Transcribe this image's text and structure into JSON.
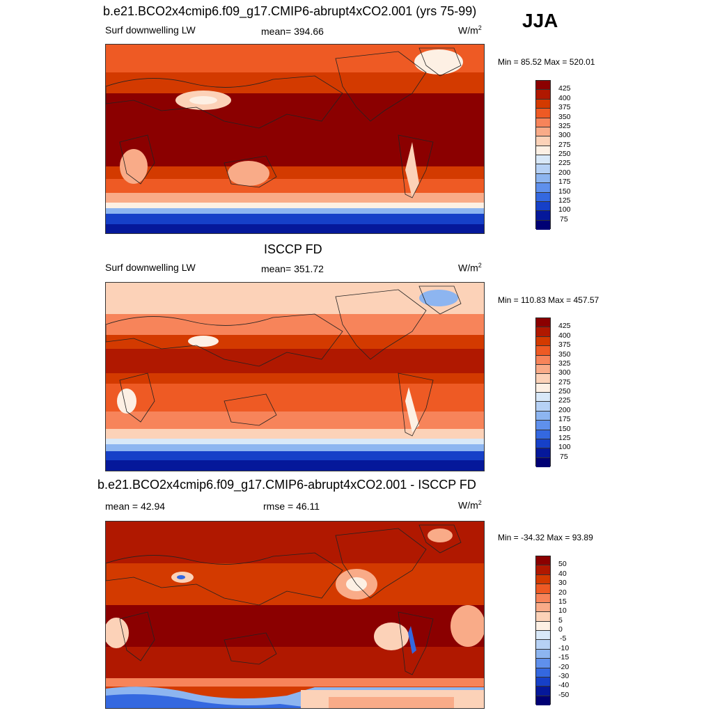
{
  "season": "JJA",
  "panels": [
    {
      "title": "b.e21.BCO2x4cmip6.f09_g17.CMIP6-abrupt4xCO2.001 (yrs 75-99)",
      "left_label": "Surf downwelling LW",
      "center_label": "mean= 394.66",
      "units": "W/m",
      "units_sup": "2",
      "minmax": "Min =  85.52 Max = 520.01",
      "colorbar_labels": [
        "425",
        "400",
        "375",
        "350",
        "325",
        "300",
        "275",
        "250",
        "225",
        "200",
        "175",
        "150",
        "125",
        "100",
        "75"
      ]
    },
    {
      "title": "ISCCP FD",
      "left_label": "Surf downwelling LW",
      "center_label": "mean= 351.72",
      "units": "W/m",
      "units_sup": "2",
      "minmax": "Min = 110.83 Max = 457.57",
      "colorbar_labels": [
        "425",
        "400",
        "375",
        "350",
        "325",
        "300",
        "275",
        "250",
        "225",
        "200",
        "175",
        "150",
        "125",
        "100",
        "75"
      ]
    },
    {
      "title": "b.e21.BCO2x4cmip6.f09_g17.CMIP6-abrupt4xCO2.001 - ISCCP FD",
      "left_label": "mean =  42.94",
      "center_label": "rmse =  46.11",
      "units": "W/m",
      "units_sup": "2",
      "minmax": "Min = -34.32 Max =  93.89",
      "colorbar_labels": [
        "50",
        "40",
        "30",
        "20",
        "15",
        "10",
        "5",
        "0",
        "-5",
        "-10",
        "-15",
        "-20",
        "-30",
        "-40",
        "-50"
      ]
    }
  ],
  "colorbar_colors": [
    "#8b0000",
    "#b01800",
    "#d33a00",
    "#ee5a24",
    "#f7845a",
    "#f9ab88",
    "#fcd2b8",
    "#fdf0e4",
    "#d8e8f8",
    "#b6d1f5",
    "#8db5f0",
    "#5f90ec",
    "#3468e0",
    "#1640c8",
    "#05189a",
    "#000074"
  ]
}
